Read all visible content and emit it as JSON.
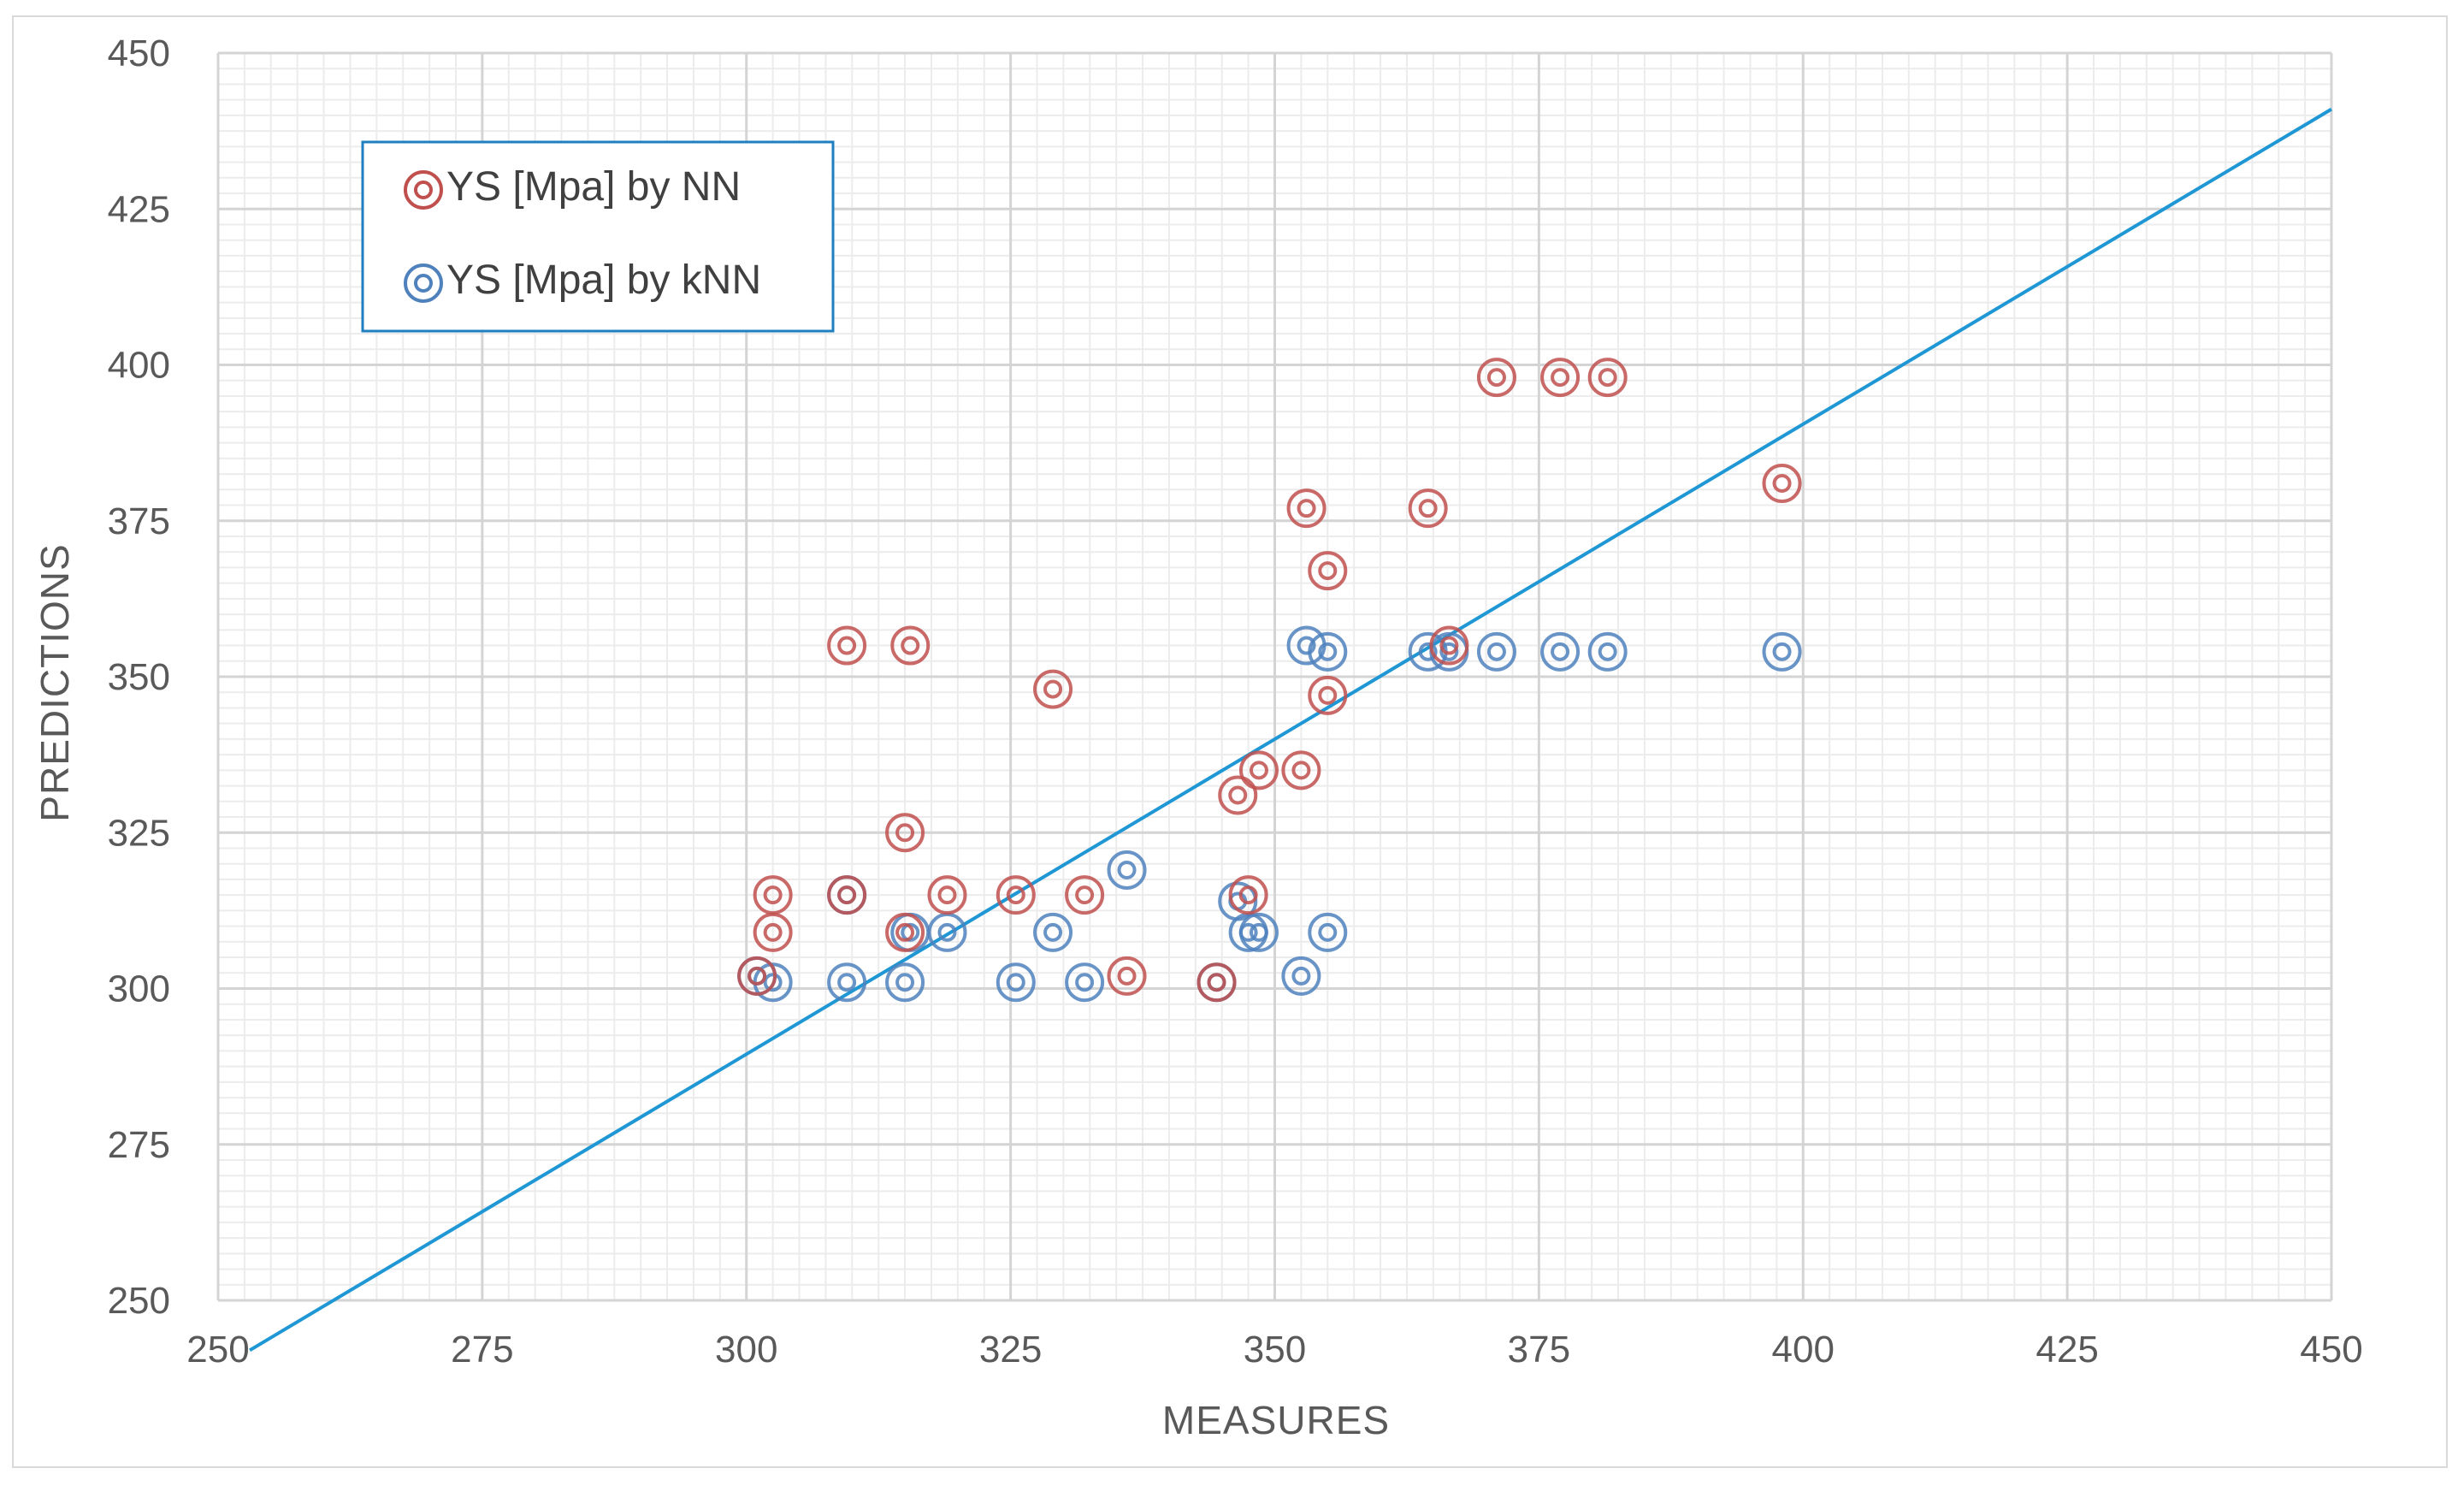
{
  "chart_data": {
    "type": "scatter",
    "title": "",
    "xlabel": "MEASURES",
    "ylabel": "PREDICTIONS",
    "xlim": [
      250,
      450
    ],
    "ylim": [
      250,
      450
    ],
    "xticks": [
      "250",
      "275",
      "300",
      "325",
      "350",
      "375",
      "400",
      "425",
      "450"
    ],
    "yticks": [
      "250",
      "275",
      "300",
      "325",
      "350",
      "375",
      "400",
      "425",
      "450"
    ],
    "grid": true,
    "legend_position": "top-left",
    "series": [
      {
        "name": "YS [Mpa] by NN",
        "color": "#c0504d",
        "points": [
          [
            301,
            302
          ],
          [
            302.5,
            309
          ],
          [
            302.5,
            315
          ],
          [
            309.5,
            315
          ],
          [
            309.5,
            355
          ],
          [
            315,
            309
          ],
          [
            315,
            325
          ],
          [
            315.5,
            355
          ],
          [
            319,
            315
          ],
          [
            325.5,
            315
          ],
          [
            329,
            348
          ],
          [
            332,
            315
          ],
          [
            336,
            302
          ],
          [
            344.5,
            301
          ],
          [
            346.5,
            331
          ],
          [
            347.5,
            315
          ],
          [
            348.5,
            335
          ],
          [
            353,
            377
          ],
          [
            352.5,
            335
          ],
          [
            355,
            367
          ],
          [
            355,
            347
          ],
          [
            364.5,
            377
          ],
          [
            366.5,
            355
          ],
          [
            371,
            398
          ],
          [
            377,
            398
          ],
          [
            381.5,
            398
          ],
          [
            398,
            381
          ]
        ]
      },
      {
        "name": "YS [Mpa] by kNN",
        "color": "#4f81bd",
        "points": [
          [
            301,
            302
          ],
          [
            302.5,
            301
          ],
          [
            309.5,
            301
          ],
          [
            309.5,
            315
          ],
          [
            315,
            301
          ],
          [
            315.5,
            309
          ],
          [
            319,
            309
          ],
          [
            325.5,
            301
          ],
          [
            329,
            309
          ],
          [
            332,
            301
          ],
          [
            336,
            319
          ],
          [
            344.5,
            301
          ],
          [
            346.5,
            314
          ],
          [
            347.5,
            309
          ],
          [
            348.5,
            309
          ],
          [
            352.5,
            302
          ],
          [
            353,
            355
          ],
          [
            355,
            309
          ],
          [
            355,
            354
          ],
          [
            364.5,
            354
          ],
          [
            366.5,
            354
          ],
          [
            371,
            354
          ],
          [
            377,
            354
          ],
          [
            381.5,
            354
          ],
          [
            398,
            354
          ]
        ]
      }
    ],
    "trendline": {
      "color": "#1f97d4",
      "x": [
        253,
        450
      ],
      "y": [
        242,
        441
      ]
    }
  }
}
